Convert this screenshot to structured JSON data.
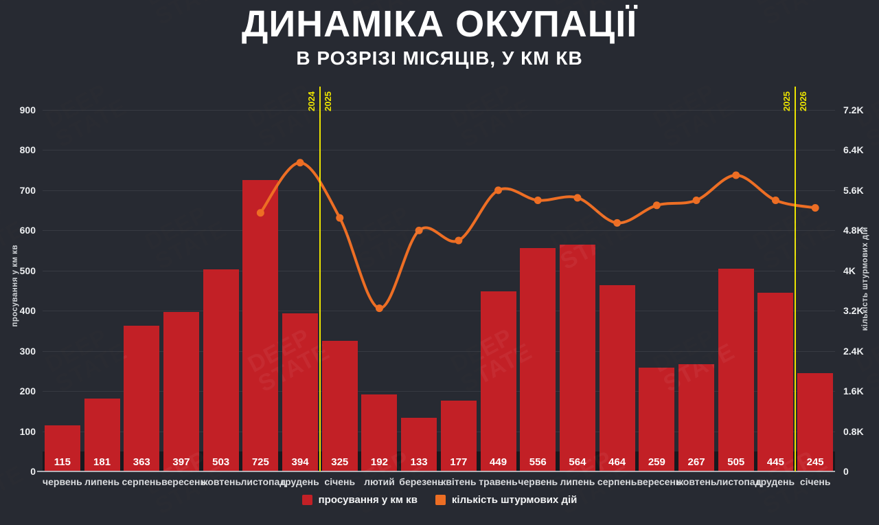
{
  "title": "ДИНАМІКА ОКУПАЦІЇ",
  "subtitle": "В РОЗРІЗІ МІСЯЦІВ, У КМ КВ",
  "watermark_text": "DEEP\nSTATE",
  "colors": {
    "background": "#272a32",
    "bar": "#c22026",
    "line": "#ed6e24",
    "divider": "#ece400",
    "year_label": "#ece400"
  },
  "left_axis": {
    "title": "просування у км кв",
    "ticks": [
      "0",
      "100",
      "200",
      "300",
      "400",
      "500",
      "600",
      "700",
      "800",
      "900"
    ],
    "min": 0,
    "max": 900
  },
  "right_axis": {
    "title": "кількість штурмових дій",
    "ticks": [
      "0",
      "0.8K",
      "1.6K",
      "2.4K",
      "3.2K",
      "4K",
      "4.8K",
      "5.6K",
      "6.4K",
      "7.2K"
    ],
    "min": 0,
    "max": 7200
  },
  "dividers": [
    {
      "after_index": 6,
      "left_label": "2024",
      "right_label": "2025"
    },
    {
      "after_index": 18,
      "left_label": "2025",
      "right_label": "2026"
    }
  ],
  "legend": [
    {
      "label": "просування у км кв",
      "color": "#c22026"
    },
    {
      "label": "кількість штурмових дій",
      "color": "#ed6e24"
    }
  ],
  "chart_data": {
    "type": "bar",
    "title": "ДИНАМІКА ОКУПАЦІЇ — В РОЗРІЗІ МІСЯЦІВ, У КМ КВ",
    "categories": [
      "червень",
      "липень",
      "серпень",
      "вересень",
      "жовтень",
      "листопад",
      "грудень",
      "січень",
      "лютий",
      "березень",
      "квітень",
      "травень",
      "червень",
      "липень",
      "серпень",
      "вересень",
      "жовтень",
      "листопад",
      "грудень",
      "січень"
    ],
    "series": [
      {
        "name": "просування у км кв",
        "type": "bar",
        "axis": "left",
        "values": [
          115,
          181,
          363,
          397,
          503,
          725,
          394,
          325,
          192,
          133,
          177,
          449,
          556,
          564,
          464,
          259,
          267,
          505,
          445,
          245
        ]
      },
      {
        "name": "кількість штурмових дій",
        "type": "line",
        "axis": "right",
        "values": [
          null,
          null,
          null,
          null,
          null,
          5150,
          6150,
          5050,
          3250,
          4800,
          4600,
          5600,
          5400,
          5450,
          4950,
          5300,
          5400,
          5900,
          5400,
          5250
        ]
      }
    ],
    "left_ylim": [
      0,
      900
    ],
    "right_ylim": [
      0,
      7200
    ],
    "grid": true,
    "legend_position": "bottom"
  }
}
